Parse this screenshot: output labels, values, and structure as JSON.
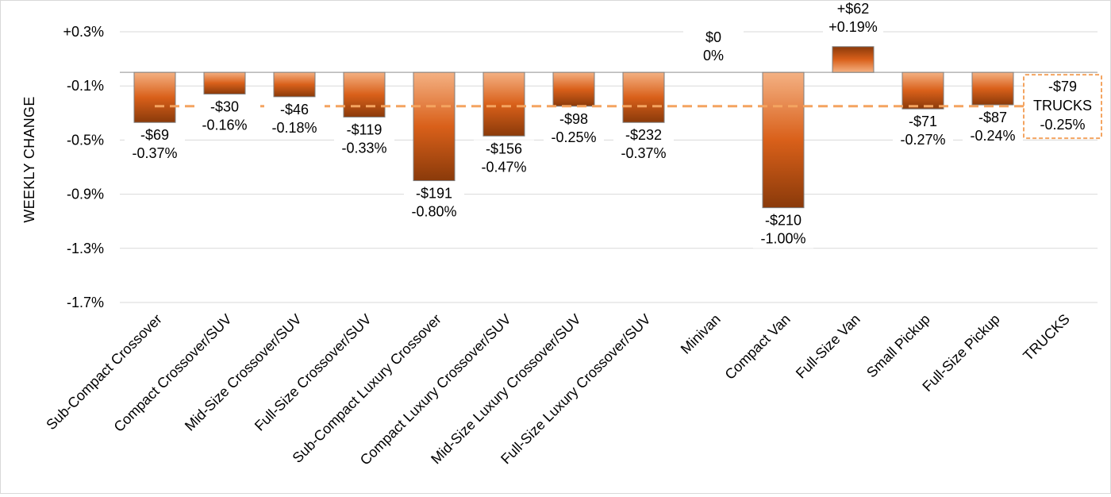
{
  "chart_data": {
    "type": "bar",
    "ylabel": "WEEKLY CHANGE",
    "ylim": [
      -1.7,
      0.3
    ],
    "y_ticks": [
      "+0.3%",
      "-0.1%",
      "-0.5%",
      "-0.9%",
      "-1.3%",
      "-1.7%"
    ],
    "y_tick_values": [
      0.3,
      -0.1,
      -0.5,
      -0.9,
      -1.3,
      -1.7
    ],
    "grid": "horizontal",
    "categories": [
      "Sub-Compact Crossover",
      "Compact Crossover/SUV",
      "Mid-Size Crossover/SUV",
      "Full-Size Crossover/SUV",
      "Sub-Compact Luxury Crossover",
      "Compact Luxury Crossover/SUV",
      "Mid-Size Luxury Crossover/SUV",
      "Full-Size Luxury Crossover/SUV",
      "Minivan",
      "Compact Van",
      "Full-Size Van",
      "Small Pickup",
      "Full-Size Pickup",
      "TRUCKS"
    ],
    "values": [
      -0.37,
      -0.16,
      -0.18,
      -0.33,
      -0.8,
      -0.47,
      -0.25,
      -0.37,
      0,
      -1.0,
      0.19,
      -0.27,
      -0.24,
      -0.25
    ],
    "dollar_labels": [
      "-$69",
      "-$30",
      "-$46",
      "-$119",
      "-$191",
      "-$156",
      "-$98",
      "-$232",
      "$0",
      "-$210",
      "+$62",
      "-$71",
      "-$87",
      "-$79"
    ],
    "percent_labels": [
      "-0.37%",
      "-0.16%",
      "-0.18%",
      "-0.33%",
      "-0.80%",
      "-0.47%",
      "-0.25%",
      "-0.37%",
      "0%",
      "-1.00%",
      "+0.19%",
      "-0.27%",
      "-0.24%",
      "-0.25%"
    ],
    "summary_label": "TRUCKS",
    "reference_line_value": -0.25,
    "colors": {
      "bar_dark": "#8a3a0a",
      "bar_mid": "#d9601a",
      "bar_light": "#f4b183",
      "bar_edge": "#7f7f7f",
      "reference_line": "#f4a460",
      "grid": "#d9d9d9"
    }
  }
}
